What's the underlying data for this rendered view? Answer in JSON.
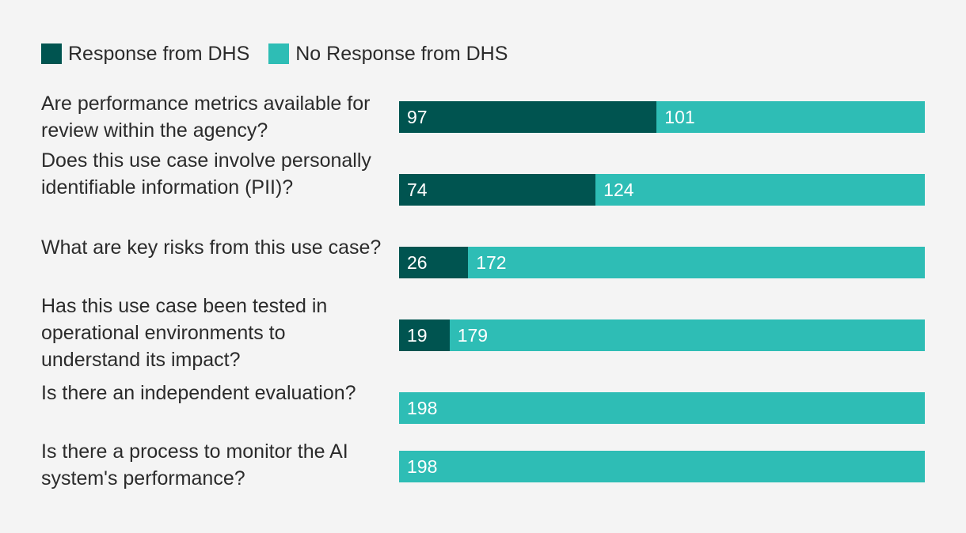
{
  "chart_data": {
    "type": "bar",
    "orientation": "horizontal",
    "stacked": true,
    "categories": [
      "Are performance metrics available for review within the agency?",
      "Does this use case involve personally identifiable information (PII)?",
      "What are key risks from this use case?",
      "Has this use case been tested in operational environments to understand its impact?",
      "Is there an independent evaluation?",
      "Is there a process to monitor the AI system's performance?"
    ],
    "series": [
      {
        "name": "Response from DHS",
        "color": "#005450",
        "values": [
          97,
          74,
          26,
          19,
          0,
          0
        ]
      },
      {
        "name": "No Response from DHS",
        "color": "#2ebdb5",
        "values": [
          101,
          124,
          172,
          179,
          198,
          198
        ]
      }
    ],
    "xlim": [
      0,
      198
    ],
    "grid": false,
    "legend_position": "top-left"
  }
}
